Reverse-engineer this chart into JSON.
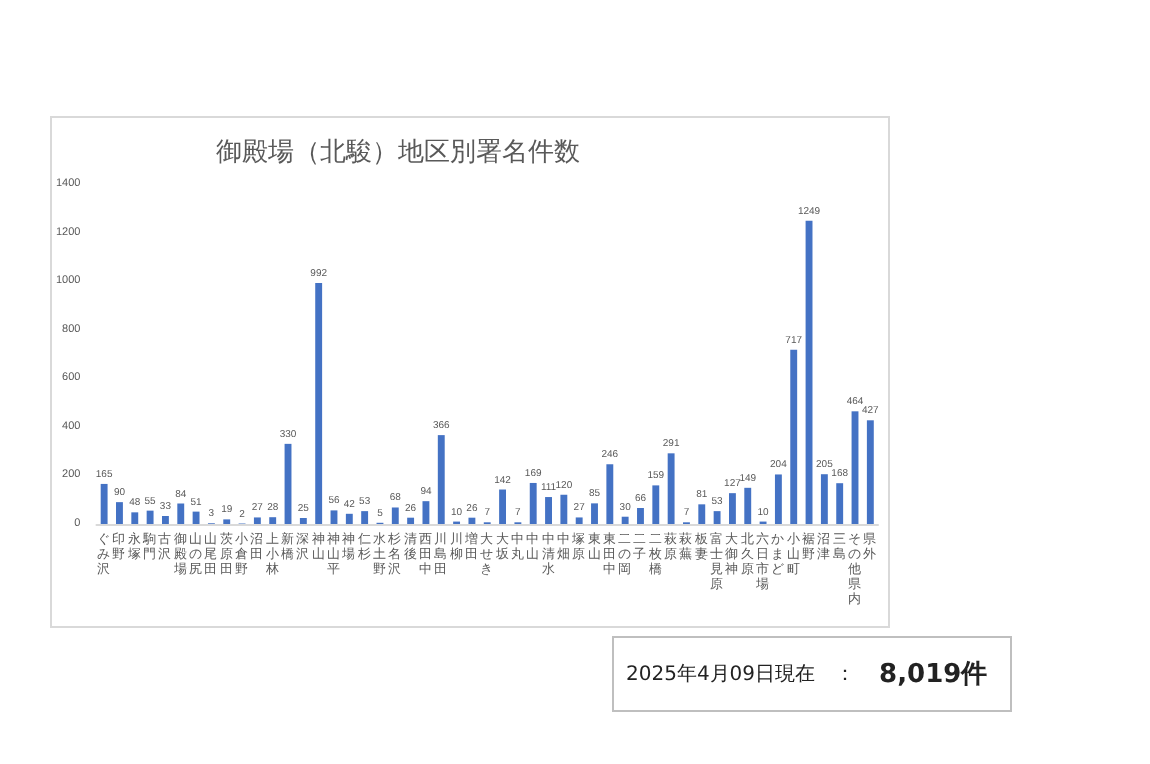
{
  "chart_data": {
    "type": "bar",
    "title": "御殿場（北駿）地区別署名件数",
    "categories": [
      "ぐみ沢",
      "印野",
      "永塚",
      "駒門",
      "古沢",
      "御殿場",
      "山の尻",
      "山尾田",
      "茨原田",
      "小倉野",
      "沼田",
      "上小林",
      "新橋",
      "深沢",
      "神山",
      "神山平",
      "神場",
      "仁杉",
      "水土野",
      "杉名沢",
      "清後",
      "西田中",
      "川島田",
      "川柳",
      "増田",
      "大せき",
      "大坂",
      "中丸",
      "中山",
      "中清水",
      "中畑",
      "塚原",
      "東山",
      "東田中",
      "二の岡",
      "二子",
      "二枚橋",
      "萩原",
      "萩蕪",
      "板妻",
      "富士見原",
      "大御神",
      "北久原",
      "六日市場",
      "かまど",
      "小山町",
      "裾野",
      "沼津",
      "三島",
      "その他県内",
      "県外"
    ],
    "values": [
      165,
      90,
      48,
      55,
      33,
      84,
      51,
      3,
      19,
      2,
      27,
      28,
      330,
      25,
      992,
      56,
      42,
      53,
      5,
      68,
      26,
      94,
      366,
      10,
      26,
      7,
      142,
      7,
      169,
      111,
      120,
      27,
      85,
      246,
      30,
      66,
      159,
      291,
      7,
      81,
      53,
      127,
      149,
      10,
      204,
      717,
      1249,
      205,
      168,
      464,
      427
    ],
    "color": "#4472c4",
    "ylim": [
      0,
      1400
    ],
    "yticks": [
      0,
      200,
      400,
      600,
      800,
      1000,
      1200,
      1400
    ],
    "grid": false,
    "data_labels": true,
    "annotations": [
      "2025年4月09日現在　：",
      "8,019件"
    ]
  }
}
